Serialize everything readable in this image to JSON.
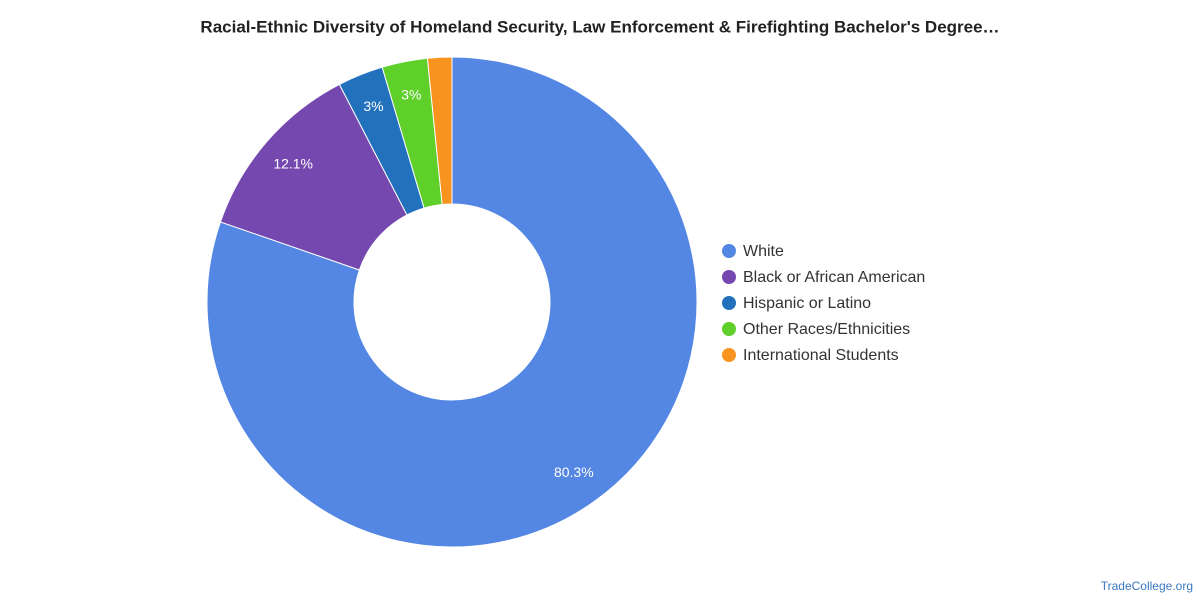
{
  "chart_data": {
    "type": "donut",
    "title": "Racial-Ethnic Diversity of Homeland Security, Law Enforcement & Firefighting Bachelor's Degree…",
    "categories": [
      "White",
      "Black or African American",
      "Hispanic or Latino",
      "Other Races/Ethnicities",
      "International Students"
    ],
    "values": [
      80.3,
      12.1,
      3,
      3,
      1.6
    ],
    "value_labels": [
      "80.3%",
      "12.1%",
      "3%",
      "3%",
      null
    ],
    "colors": [
      "#5486e3",
      "#7548b0",
      "#2271bd",
      "#5fcf2a",
      "#f7931e"
    ],
    "legend": "right",
    "source": "TradeCollege.org"
  }
}
